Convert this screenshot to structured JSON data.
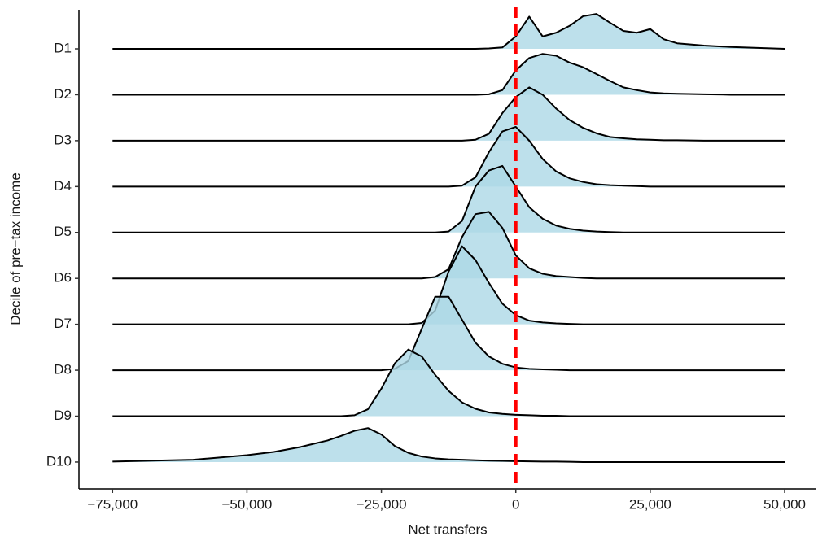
{
  "chart_data": {
    "type": "ridgeline",
    "x_label": "Net transfers",
    "y_label": "Decile of pre−tax income",
    "categories": [
      "D1",
      "D2",
      "D3",
      "D4",
      "D5",
      "D6",
      "D7",
      "D8",
      "D9",
      "D10"
    ],
    "x": [
      -75000,
      -60000,
      -50000,
      -45000,
      -40000,
      -35000,
      -32500,
      -30000,
      -27500,
      -25000,
      -22500,
      -20000,
      -17500,
      -15000,
      -12500,
      -10000,
      -7500,
      -5000,
      -2500,
      0,
      2500,
      5000,
      7500,
      10000,
      12500,
      15000,
      17500,
      20000,
      22500,
      25000,
      27500,
      30000,
      35000,
      40000,
      50000
    ],
    "series": [
      {
        "values": [
          0,
          0,
          0,
          0,
          0,
          0,
          0,
          0,
          0,
          0,
          0,
          0,
          0,
          0,
          0,
          0,
          0,
          0.01,
          0.03,
          0.27,
          0.7,
          0.27,
          0.35,
          0.5,
          0.71,
          0.76,
          0.57,
          0.39,
          0.35,
          0.43,
          0.21,
          0.12,
          0.07,
          0.04,
          0
        ]
      },
      {
        "values": [
          0,
          0,
          0,
          0,
          0,
          0,
          0,
          0,
          0,
          0,
          0,
          0,
          0,
          0,
          0,
          0,
          0,
          0.01,
          0.1,
          0.53,
          0.8,
          0.89,
          0.85,
          0.7,
          0.6,
          0.45,
          0.3,
          0.16,
          0.1,
          0.05,
          0.03,
          0.02,
          0.01,
          0,
          0
        ]
      },
      {
        "values": [
          0,
          0,
          0,
          0,
          0,
          0,
          0,
          0,
          0,
          0,
          0,
          0,
          0,
          0,
          0,
          0,
          0.02,
          0.15,
          0.6,
          0.95,
          1.16,
          1.0,
          0.7,
          0.45,
          0.28,
          0.16,
          0.08,
          0.05,
          0.03,
          0.02,
          0.01,
          0.01,
          0,
          0,
          0
        ]
      },
      {
        "values": [
          0,
          0,
          0,
          0,
          0,
          0,
          0,
          0,
          0,
          0,
          0,
          0,
          0,
          0,
          0,
          0.02,
          0.2,
          0.75,
          1.2,
          1.3,
          1.0,
          0.6,
          0.33,
          0.18,
          0.1,
          0.05,
          0.03,
          0.02,
          0.01,
          0,
          0,
          0,
          0,
          0,
          0
        ]
      },
      {
        "values": [
          0,
          0,
          0,
          0,
          0,
          0,
          0,
          0,
          0,
          0,
          0,
          0,
          0,
          0,
          0.02,
          0.25,
          1.0,
          1.35,
          1.45,
          1.0,
          0.55,
          0.3,
          0.15,
          0.08,
          0.04,
          0.02,
          0.01,
          0,
          0,
          0,
          0,
          0,
          0,
          0,
          0
        ]
      },
      {
        "values": [
          0,
          0,
          0,
          0,
          0,
          0,
          0,
          0,
          0,
          0,
          0,
          0,
          0,
          0.03,
          0.2,
          0.9,
          1.4,
          1.45,
          1.1,
          0.5,
          0.22,
          0.1,
          0.05,
          0.03,
          0.01,
          0,
          0,
          0,
          0,
          0,
          0,
          0,
          0,
          0,
          0
        ]
      },
      {
        "values": [
          0,
          0,
          0,
          0,
          0,
          0,
          0,
          0,
          0,
          0,
          0,
          0,
          0.03,
          0.3,
          1.15,
          1.7,
          1.4,
          0.9,
          0.45,
          0.2,
          0.08,
          0.04,
          0.02,
          0.01,
          0,
          0,
          0,
          0,
          0,
          0,
          0,
          0,
          0,
          0,
          0
        ]
      },
      {
        "values": [
          0,
          0,
          0,
          0,
          0,
          0,
          0,
          0,
          0,
          0,
          0.03,
          0.2,
          0.9,
          1.6,
          1.6,
          1.1,
          0.6,
          0.3,
          0.14,
          0.06,
          0.03,
          0.02,
          0.01,
          0,
          0,
          0,
          0,
          0,
          0,
          0,
          0,
          0,
          0,
          0,
          0
        ]
      },
      {
        "values": [
          0,
          0,
          0,
          0,
          0,
          0,
          0,
          0.02,
          0.15,
          0.6,
          1.15,
          1.45,
          1.3,
          0.9,
          0.55,
          0.3,
          0.16,
          0.08,
          0.05,
          0.03,
          0.02,
          0.01,
          0.01,
          0,
          0,
          0,
          0,
          0,
          0,
          0,
          0,
          0,
          0,
          0,
          0
        ]
      },
      {
        "values": [
          0.01,
          0.05,
          0.15,
          0.22,
          0.33,
          0.47,
          0.57,
          0.68,
          0.74,
          0.6,
          0.35,
          0.2,
          0.12,
          0.08,
          0.06,
          0.05,
          0.04,
          0.03,
          0.025,
          0.02,
          0.015,
          0.01,
          0.01,
          0.005,
          0,
          0,
          0,
          0,
          0,
          0,
          0,
          0,
          0,
          0,
          0
        ]
      }
    ],
    "fill_color": "#add8e6",
    "line_color": "#000000",
    "xlim": [
      -81250,
      55750
    ],
    "xticks": [
      {
        "value": -75000,
        "label": "−75,000"
      },
      {
        "value": -50000,
        "label": "−50,000"
      },
      {
        "value": -25000,
        "label": "−25,000"
      },
      0,
      {
        "value": 25000,
        "label": "25,000"
      },
      {
        "value": 50000,
        "label": "50,000"
      }
    ],
    "vline": 0,
    "vline_color": "#ff0000"
  }
}
